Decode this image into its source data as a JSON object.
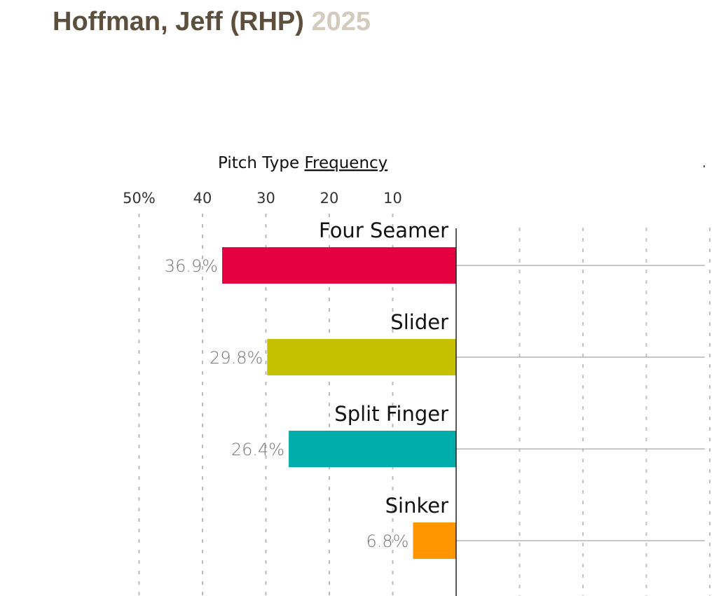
{
  "header": {
    "player_name": "Hoffman, Jeff (RHP)",
    "season": "2025"
  },
  "chart_data": {
    "type": "bar",
    "orientation": "horizontal",
    "direction": "right-to-left",
    "title_prefix": "Pitch Type",
    "title_emphasis": "Frequency",
    "categories": [
      "Four Seamer",
      "Slider",
      "Split Finger",
      "Sinker"
    ],
    "values": [
      36.9,
      29.8,
      26.4,
      6.8
    ],
    "value_labels": [
      "36.9%",
      "29.8%",
      "26.4%",
      "6.8%"
    ],
    "colors": [
      "#e4003f",
      "#c5c000",
      "#00adab",
      "#ff9500"
    ],
    "x_ticks": [
      50,
      40,
      30,
      20,
      10
    ],
    "x_tick_labels": [
      "50%",
      "40",
      "30",
      "20",
      "10"
    ],
    "xlim": [
      0,
      50
    ],
    "grid": true,
    "unit": "%"
  }
}
